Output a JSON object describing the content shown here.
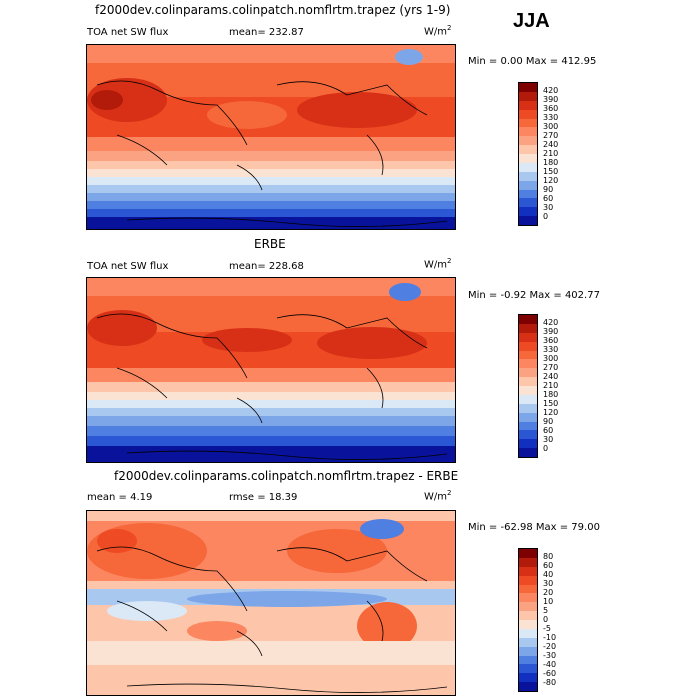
{
  "season": "JJA",
  "panels": [
    {
      "title": "f2000dev.colinparams.colinpatch.nomflrtm.trapez (yrs 1-9)",
      "variable": "TOA net SW flux",
      "stat1": "mean=  232.87",
      "stat2": "",
      "units_base": "W/m",
      "units_exp": "2",
      "minmax": "Min =   0.00  Max = 412.95",
      "colorbar_levels": [
        "420",
        "390",
        "360",
        "330",
        "300",
        "270",
        "240",
        "210",
        "180",
        "150",
        "120",
        "90",
        "60",
        "30",
        "0"
      ],
      "colorbar_colors": [
        "#7f0000",
        "#b21a0a",
        "#d73016",
        "#ee4a23",
        "#f6673a",
        "#fb8660",
        "#fba283",
        "#fdc6aa",
        "#fbe3d4",
        "#dbe9f7",
        "#a9c8ef",
        "#7da6e8",
        "#4f7fe0",
        "#2b56d4",
        "#1230c0",
        "#08129a"
      ]
    },
    {
      "title": "ERBE",
      "variable": "TOA net SW flux",
      "stat1": "mean=  228.68",
      "stat2": "",
      "units_base": "W/m",
      "units_exp": "2",
      "minmax": "Min =  -0.92  Max = 402.77",
      "colorbar_levels": [
        "420",
        "390",
        "360",
        "330",
        "300",
        "270",
        "240",
        "210",
        "180",
        "150",
        "120",
        "90",
        "60",
        "30",
        "0"
      ],
      "colorbar_colors": [
        "#7f0000",
        "#b21a0a",
        "#d73016",
        "#ee4a23",
        "#f6673a",
        "#fb8660",
        "#fba283",
        "#fdc6aa",
        "#fbe3d4",
        "#dbe9f7",
        "#a9c8ef",
        "#7da6e8",
        "#4f7fe0",
        "#2b56d4",
        "#1230c0",
        "#08129a"
      ]
    },
    {
      "title": "f2000dev.colinparams.colinpatch.nomflrtm.trapez - ERBE",
      "variable": "mean =    4.19",
      "stat1": "",
      "stat2": "rmse =  18.39",
      "units_base": "W/m",
      "units_exp": "2",
      "minmax": "Min = -62.98  Max =  79.00",
      "colorbar_levels": [
        "80",
        "60",
        "40",
        "30",
        "20",
        "10",
        "5",
        "0",
        "-5",
        "-10",
        "-20",
        "-30",
        "-40",
        "-60",
        "-80"
      ],
      "colorbar_colors": [
        "#7f0000",
        "#b21a0a",
        "#d73016",
        "#ee4a23",
        "#f6673a",
        "#fb8660",
        "#fba283",
        "#fdc6aa",
        "#fbe3d4",
        "#dbe9f7",
        "#a9c8ef",
        "#7da6e8",
        "#4f7fe0",
        "#2b56d4",
        "#1230c0",
        "#08129a"
      ]
    }
  ]
}
